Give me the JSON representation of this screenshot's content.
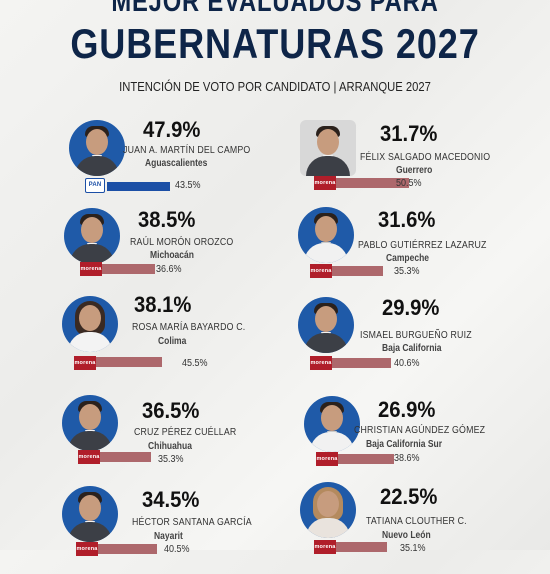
{
  "header": {
    "pretitle": "MEJOR EVALUADOS PARA",
    "title": "GUBERNATURAS 2027",
    "subtitle": "INTENCIÓN DE VOTO POR CANDIDATO | ARRANQUE 2027"
  },
  "candidates": [
    {
      "pct": "47.9%",
      "name": "JUAN A. MARTÍN DEL CAMPO",
      "state": "Aguascalientes",
      "bar_value": "43.5%",
      "bar_fraction": 0.435,
      "party": "PAN",
      "party_color": "#1b4fa6"
    },
    {
      "pct": "31.7%",
      "name": "FÉLIX SALGADO MACEDONIO",
      "state": "Guerrero",
      "bar_value": "50.5%",
      "bar_fraction": 0.505,
      "party": "morena",
      "party_color": "#b01e2a"
    },
    {
      "pct": "38.5%",
      "name": "RAÚL MORÓN OROZCO",
      "state": "Michoacán",
      "bar_value": "36.6%",
      "bar_fraction": 0.366,
      "party": "morena",
      "party_color": "#b01e2a"
    },
    {
      "pct": "31.6%",
      "name": "PABLO GUTIÉRREZ LAZARUZ",
      "state": "Campeche",
      "bar_value": "35.3%",
      "bar_fraction": 0.353,
      "party": "morena",
      "party_color": "#b01e2a"
    },
    {
      "pct": "38.1%",
      "name": "ROSA MARÍA BAYARDO C.",
      "state": "Colima",
      "bar_value": "45.5%",
      "bar_fraction": 0.455,
      "party": "morena",
      "party_color": "#b01e2a"
    },
    {
      "pct": "29.9%",
      "name": "ISMAEL BURGUEÑO RUIZ",
      "state": "Baja California",
      "bar_value": "40.6%",
      "bar_fraction": 0.406,
      "party": "morena",
      "party_color": "#b01e2a"
    },
    {
      "pct": "36.5%",
      "name": "CRUZ PÉREZ CUÉLLAR",
      "state": "Chihuahua",
      "bar_value": "35.3%",
      "bar_fraction": 0.353,
      "party": "morena",
      "party_color": "#b01e2a"
    },
    {
      "pct": "26.9%",
      "name": "CHRISTIAN AGÚNDEZ GÓMEZ",
      "state": "Baja California Sur",
      "bar_value": "38.6%",
      "bar_fraction": 0.386,
      "party": "morena",
      "party_color": "#b01e2a"
    },
    {
      "pct": "34.5%",
      "name": "HÉCTOR SANTANA GARCÍA",
      "state": "Nayarit",
      "bar_value": "40.5%",
      "bar_fraction": 0.405,
      "party": "morena",
      "party_color": "#b01e2a"
    },
    {
      "pct": "22.5%",
      "name": "TATIANA CLOUTHER C.",
      "state": "Nuevo León",
      "bar_value": "35.1%",
      "bar_fraction": 0.351,
      "party": "morena",
      "party_color": "#b01e2a"
    }
  ],
  "bar_color": "#ad686c",
  "title_color": "#0e2548"
}
